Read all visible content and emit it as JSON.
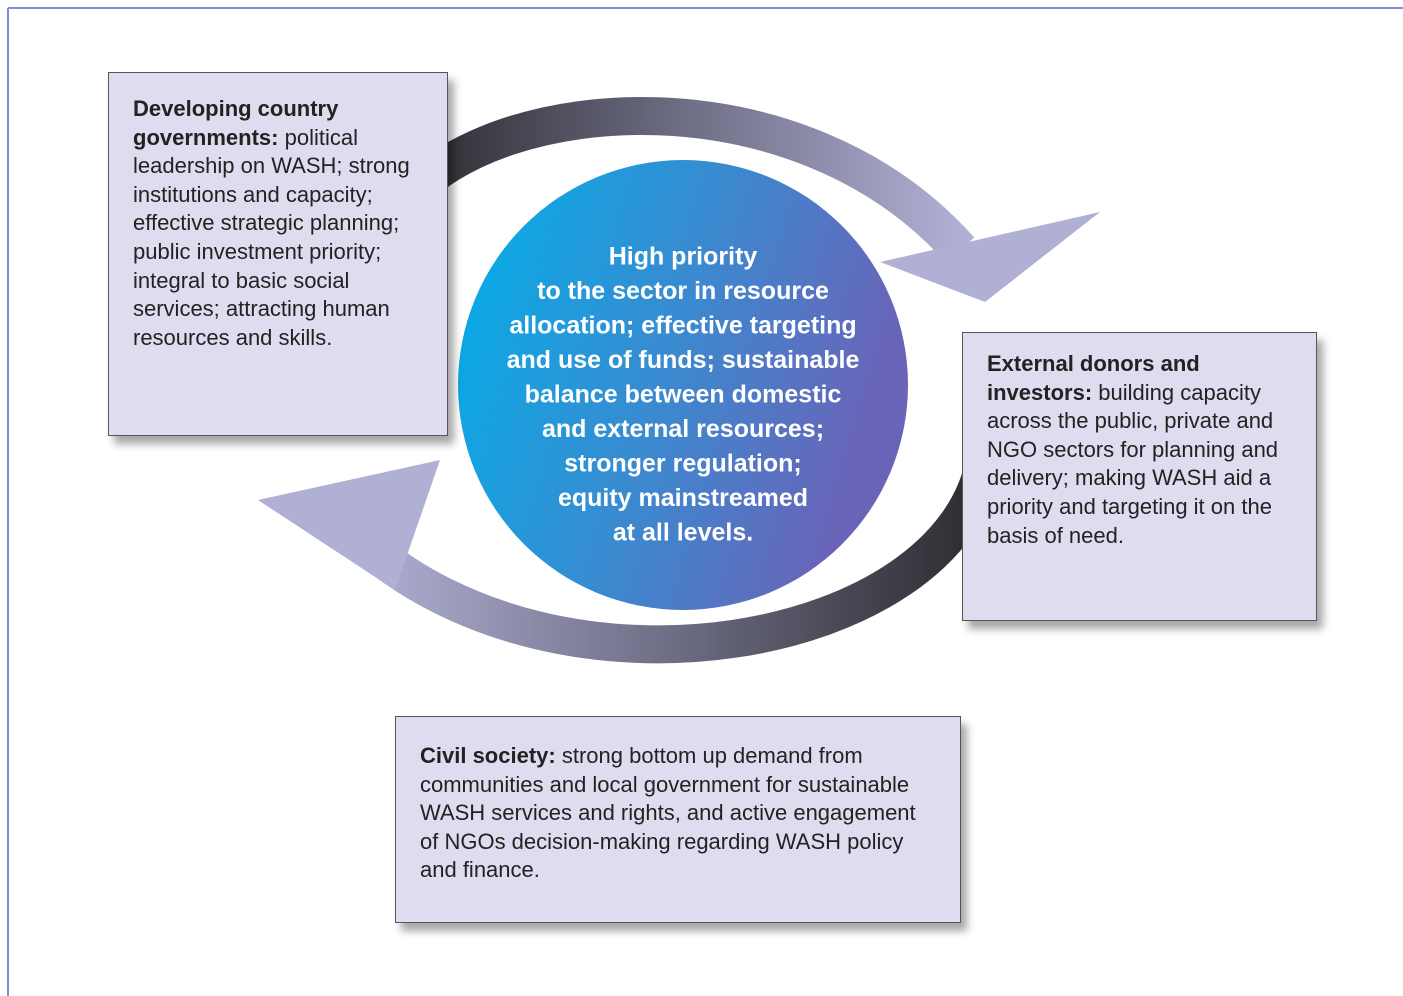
{
  "center": {
    "lines": [
      "High priority",
      "to the sector in resource",
      "allocation; effective targeting",
      "and use of funds; sustainable",
      "balance between domestic",
      "and external resources;",
      "stronger regulation;",
      "equity mainstreamed",
      "at all levels."
    ]
  },
  "boxes": [
    {
      "lead": "Developing country governments:",
      "text": "political leadership on WASH; strong institutions and capacity; effective strategic planning; public investment priority; integral to basic social services; attracting human resources and skills."
    },
    {
      "lead": "External donors and investors:",
      "text": "building capacity across the public, private and NGO sectors for planning and delivery; making WASH aid a priority and targeting it on the basis of need."
    },
    {
      "lead": "Civil society:",
      "text": "strong bottom up demand from communities and local government for sustainable WASH services and rights, and active engagement of NGOs decision-making regarding WASH policy and finance."
    }
  ]
}
